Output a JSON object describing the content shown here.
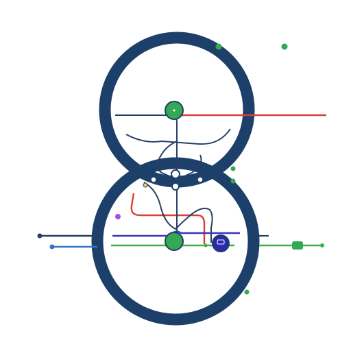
{
  "colors": {
    "ring": "#1d406b",
    "red_line": "#d8412f",
    "green_line": "#3fae49",
    "blue_line": "#2f76c8",
    "navy_line": "#263f66",
    "purple_line": "#3b36b8",
    "station_green": "#34a853",
    "station_purple": "#2b2aa8",
    "background": "#ffffff"
  },
  "icons": {
    "main_station_top": "green-dot-icon",
    "main_station_bottom": "green-dot-icon",
    "terminal_station": "purple-circle-icon",
    "legend_dot": "green-dot-icon"
  }
}
